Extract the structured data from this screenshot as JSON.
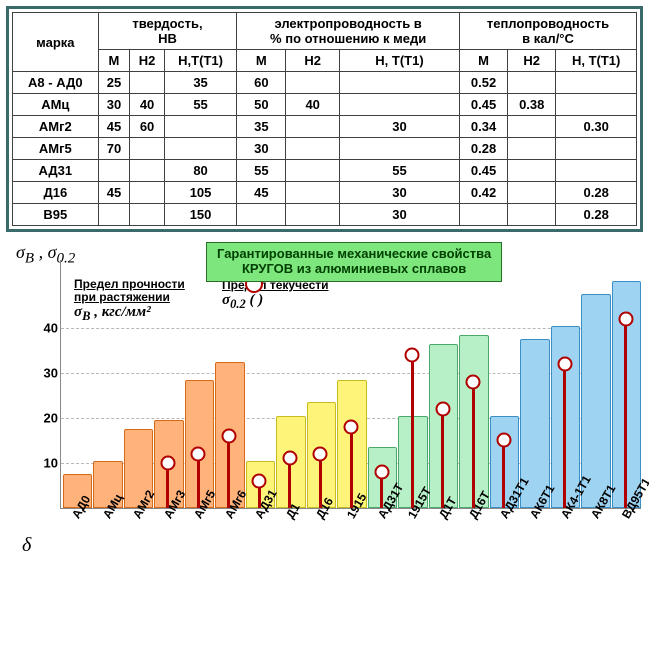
{
  "table": {
    "rowHeaderLabel": "марка",
    "groups": [
      {
        "title": "твердость,",
        "sub": "НВ"
      },
      {
        "title": "электропроводность в",
        "sub": "% по отношению к меди"
      },
      {
        "title": "теплопроводность",
        "sub": "в кал/°С"
      }
    ],
    "subHeaders": [
      "М",
      "Н2",
      "Н,Т(Т1)",
      "М",
      "Н2",
      "Н, Т(Т1)",
      "М",
      "Н2",
      "Н, Т(Т1)"
    ],
    "rows": [
      {
        "name": "А8 - АД0",
        "c": [
          "25",
          "",
          "35",
          "60",
          "",
          "",
          "0.52",
          "",
          ""
        ]
      },
      {
        "name": "АМц",
        "c": [
          "30",
          "40",
          "55",
          "50",
          "40",
          "",
          "0.45",
          "0.38",
          ""
        ]
      },
      {
        "name": "АМг2",
        "c": [
          "45",
          "60",
          "",
          "35",
          "",
          "30",
          "0.34",
          "",
          "0.30"
        ]
      },
      {
        "name": "АМг5",
        "c": [
          "70",
          "",
          "",
          "30",
          "",
          "",
          "0.28",
          "",
          ""
        ]
      },
      {
        "name": "АД31",
        "c": [
          "",
          "",
          "80",
          "55",
          "",
          "55",
          "0.45",
          "",
          ""
        ]
      },
      {
        "name": "Д16",
        "c": [
          "45",
          "",
          "105",
          "45",
          "",
          "30",
          "0.42",
          "",
          "0.28"
        ]
      },
      {
        "name": "В95",
        "c": [
          "",
          "",
          "150",
          "",
          "",
          "30",
          "",
          "",
          "0.28"
        ]
      }
    ]
  },
  "chart": {
    "title1": "Гарантированные механические свойства",
    "title2": "КРУГОВ из алюминиевых сплавов",
    "yAxisHtml": "σ<sub>B</sub> , σ<sub>0.2</sub>",
    "legendLeft1": "Предел прочности",
    "legendLeft2": "при растяжении",
    "legendLeftFormula": "σ<sub>B</sub> , <i>кгс/мм²</i>",
    "legendRight1": "Предел текучести",
    "legendRightFormula": "σ<sub>0.2</sub> (    )",
    "deltaLabel": "δ",
    "ylim": [
      0,
      55
    ],
    "yticks": [
      10,
      20,
      30,
      40
    ],
    "ytick_fontsize": 13,
    "groupColors": {
      "orange": {
        "fill": "#ffb27a",
        "stroke": "#d46a1a"
      },
      "yellow": {
        "fill": "#fff47a",
        "stroke": "#c7bb1e"
      },
      "green": {
        "fill": "#b7efc7",
        "stroke": "#4aa86b"
      },
      "blue": {
        "fill": "#9fd3f2",
        "stroke": "#3b8fc4"
      }
    },
    "categories": [
      {
        "label": "АД0",
        "sigmaB": 7,
        "sigma02": null,
        "group": "orange"
      },
      {
        "label": "АМц",
        "sigmaB": 10,
        "sigma02": null,
        "group": "orange"
      },
      {
        "label": "АМг2",
        "sigmaB": 17,
        "sigma02": null,
        "group": "orange"
      },
      {
        "label": "АМг3",
        "sigmaB": 19,
        "sigma02": 10,
        "group": "orange"
      },
      {
        "label": "АМг5",
        "sigmaB": 28,
        "sigma02": 12,
        "group": "orange"
      },
      {
        "label": "АМг6",
        "sigmaB": 32,
        "sigma02": 16,
        "group": "orange"
      },
      {
        "label": "АД31",
        "sigmaB": 10,
        "sigma02": 6,
        "group": "yellow"
      },
      {
        "label": "Д1",
        "sigmaB": 20,
        "sigma02": 11,
        "group": "yellow"
      },
      {
        "label": "Д16",
        "sigmaB": 23,
        "sigma02": 12,
        "group": "yellow"
      },
      {
        "label": "1915",
        "sigmaB": 28,
        "sigma02": 18,
        "group": "yellow"
      },
      {
        "label": "АД31Т",
        "sigmaB": 13,
        "sigma02": 8,
        "group": "green"
      },
      {
        "label": "1915Т",
        "sigmaB": 20,
        "sigma02": 34,
        "group": "green"
      },
      {
        "label": "Д1Т",
        "sigmaB": 36,
        "sigma02": 22,
        "group": "green"
      },
      {
        "label": "Д16Т",
        "sigmaB": 38,
        "sigma02": 28,
        "group": "green"
      },
      {
        "label": "АД31Т1",
        "sigmaB": 20,
        "sigma02": 15,
        "group": "blue"
      },
      {
        "label": "АК6Т1",
        "sigmaB": 37,
        "sigma02": null,
        "group": "blue"
      },
      {
        "label": "АК4-1Т1",
        "sigmaB": 40,
        "sigma02": 32,
        "group": "blue"
      },
      {
        "label": "АК8Т1",
        "sigmaB": 47,
        "sigma02": null,
        "group": "blue"
      },
      {
        "label": "ВД95Т1",
        "sigmaB": 50,
        "sigma02": 42,
        "group": "blue"
      }
    ],
    "bar_width_ratio": 0.9,
    "grid_color": "#b8b8b8",
    "background": "#ffffff"
  }
}
